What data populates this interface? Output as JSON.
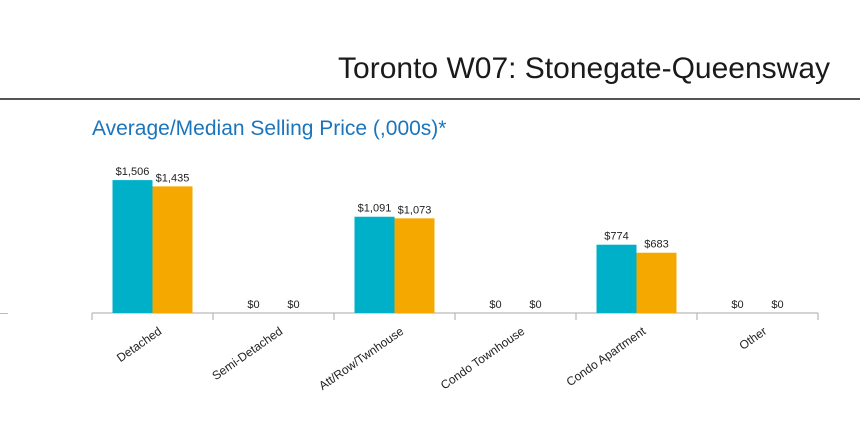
{
  "header": {
    "title": "Toronto W07: Stonegate-Queensway"
  },
  "chart_data": {
    "type": "bar",
    "title": "Average/Median Selling Price (,000s)*",
    "title_color": "#1b75bc",
    "categories": [
      "Detached",
      "Semi-Detached",
      "Att/Row/Twnhouse",
      "Condo Townhouse",
      "Condo Apartment",
      "Other"
    ],
    "series": [
      {
        "color": "#00afc8",
        "values": [
          1506,
          0,
          1091,
          0,
          774,
          0
        ]
      },
      {
        "color": "#f5a800",
        "values": [
          1435,
          0,
          1073,
          0,
          683,
          0
        ]
      }
    ],
    "value_labels": [
      [
        "$1,506",
        "$0",
        "$1,091",
        "$0",
        "$774",
        "$0"
      ],
      [
        "$1,435",
        "$0",
        "$1,073",
        "$0",
        "$683",
        "$0"
      ]
    ],
    "ylim": [
      0,
      1700
    ],
    "grid": false,
    "legend": "none"
  }
}
